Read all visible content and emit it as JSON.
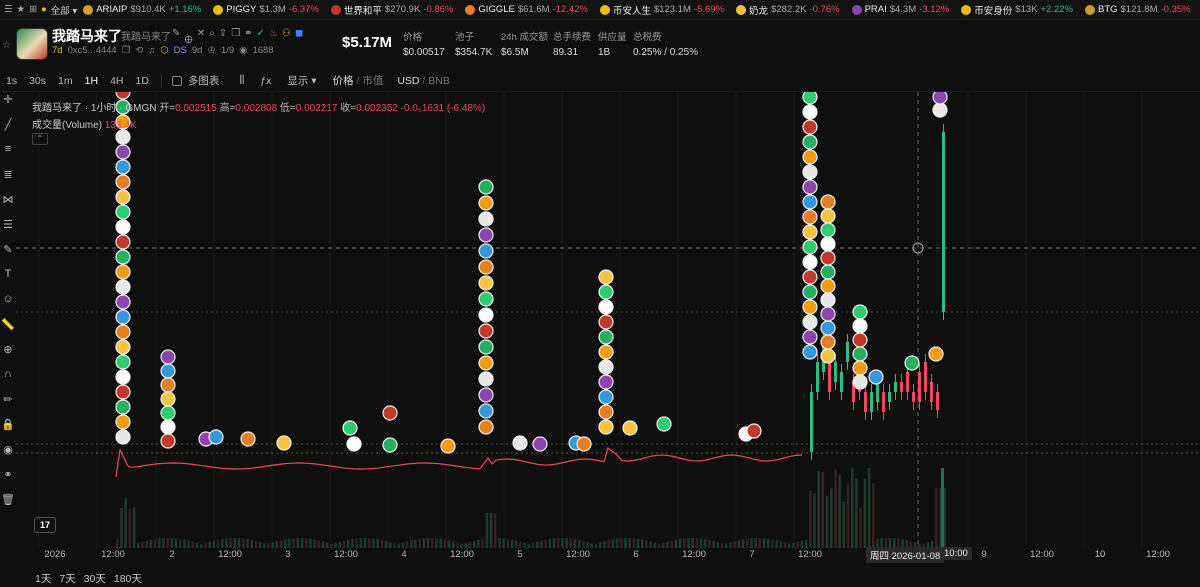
{
  "ticker": {
    "all_label": "全部",
    "items": [
      {
        "name": "ARIAIP",
        "price": "$910.4K",
        "change": "+1.16%",
        "dir": "pos",
        "color": "#d6a01f"
      },
      {
        "name": "PIGGY",
        "price": "$1.3M",
        "change": "-6.37%",
        "dir": "neg",
        "color": "#f0b90b"
      },
      {
        "name": "世界和平",
        "price": "$270.9K",
        "change": "-0.86%",
        "dir": "neg",
        "color": "#c0392b"
      },
      {
        "name": "GIGGLE",
        "price": "$61.6M",
        "change": "-12.42%",
        "dir": "neg",
        "color": "#e67e22"
      },
      {
        "name": "币安人生",
        "price": "$123.1M",
        "change": "-5.69%",
        "dir": "neg",
        "color": "#f0b90b"
      },
      {
        "name": "奶龙",
        "price": "$282.2K",
        "change": "-0.76%",
        "dir": "neg",
        "color": "#f5c542"
      },
      {
        "name": "PRAI",
        "price": "$4.3M",
        "change": "-3.12%",
        "dir": "neg",
        "color": "#8e44ad"
      },
      {
        "name": "币安身份",
        "price": "$13K",
        "change": "+2.22%",
        "dir": "pos",
        "color": "#f0b90b"
      },
      {
        "name": "BTG",
        "price": "$121.8M",
        "change": "-0.35%",
        "dir": "neg",
        "color": "#c9a227"
      }
    ]
  },
  "token": {
    "name": "我踏马来了",
    "sub_name": "我踏马来了",
    "age": "7d",
    "address": "0xc5...4444",
    "ds_label": "DS",
    "ds_age": "9d",
    "holders_ratio": "1/9",
    "views": "1688",
    "market_cap": "$5.17M"
  },
  "stats": [
    {
      "label": "价格",
      "value": "$0.00517"
    },
    {
      "label": "池子",
      "value": "$354.7K"
    },
    {
      "label": "24h 成交额",
      "value": "$6.5M"
    },
    {
      "label": "总手续费",
      "value": "89.31"
    },
    {
      "label": "供应量",
      "value": "1B"
    },
    {
      "label": "总税费",
      "value": "0.25% / 0.25%"
    }
  ],
  "toolbar": {
    "timeframes": [
      "1s",
      "30s",
      "1m",
      "1H",
      "4H",
      "1D"
    ],
    "active_timeframe": "1H",
    "multi_chart": "多图表",
    "display": "显示",
    "price_label": "价格",
    "mcap_label": "市值",
    "usd": "USD",
    "bnb": "BNB"
  },
  "legend": {
    "title": "我踏马来了 · 1小时 · GMGN",
    "open_k": "开=",
    "open_v": "0.002515",
    "high_k": "高=",
    "high_v": "0.002808",
    "low_k": "低=",
    "low_v": "0.002217",
    "close_k": "收=",
    "close_v": "0.002352",
    "change": "-0.0₅1631 (-6.48%)",
    "volume_label": "成交量(Volume)",
    "volume_value": "133.4K"
  },
  "xaxis": {
    "labels": [
      "2026",
      "12:00",
      "2",
      "12:00",
      "3",
      "12:00",
      "4",
      "12:00",
      "5",
      "12:00",
      "6",
      "12:00",
      "7",
      "12:00",
      "9",
      "12:00",
      "10",
      "12:00"
    ],
    "crosshair_date": "周四 2026-01-08",
    "crosshair_time": "10:00"
  },
  "ranges": [
    "1天",
    "7天",
    "30天",
    "180天"
  ],
  "tv_logo": "17",
  "chart_data": {
    "type": "candlestick",
    "title": "我踏马来了 · 1小时 · GMGN",
    "interval": "1H",
    "ohlc_last": {
      "open": 0.002515,
      "high": 0.002808,
      "low": 0.002217,
      "close": 0.002352
    },
    "price_series": [
      {
        "day": "Jan 1 12:00",
        "price": 0.00045
      },
      {
        "day": "Jan 2",
        "price": 0.0004
      },
      {
        "day": "Jan 3",
        "price": 0.0004
      },
      {
        "day": "Jan 4",
        "price": 0.00042
      },
      {
        "day": "Jan 4 12:00",
        "price": 0.00055
      },
      {
        "day": "Jan 5",
        "price": 0.00058
      },
      {
        "day": "Jan 6",
        "price": 0.0006
      },
      {
        "day": "Jan 7",
        "price": 0.00058
      },
      {
        "day": "Jan 7 12:00",
        "price": 0.00062
      },
      {
        "day": "Jan 8",
        "price": 0.0022
      },
      {
        "day": "Jan 8 10:00",
        "price": 0.0026
      }
    ],
    "volume_last": "133.4K"
  }
}
